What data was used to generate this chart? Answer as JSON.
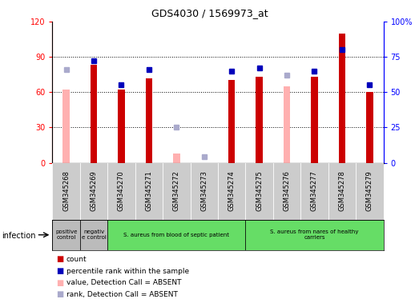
{
  "title": "GDS4030 / 1569973_at",
  "samples": [
    "GSM345268",
    "GSM345269",
    "GSM345270",
    "GSM345271",
    "GSM345272",
    "GSM345273",
    "GSM345274",
    "GSM345275",
    "GSM345276",
    "GSM345277",
    "GSM345278",
    "GSM345279"
  ],
  "count_values": [
    null,
    83,
    62,
    72,
    null,
    null,
    70,
    73,
    null,
    73,
    110,
    60
  ],
  "rank_values": [
    null,
    72,
    55,
    66,
    null,
    null,
    65,
    67,
    null,
    65,
    80,
    55
  ],
  "absent_value_values": [
    62,
    null,
    null,
    null,
    8,
    null,
    null,
    null,
    65,
    null,
    null,
    null
  ],
  "absent_rank_values": [
    66,
    null,
    null,
    null,
    25,
    4,
    null,
    null,
    62,
    null,
    null,
    null
  ],
  "ylim_left": [
    0,
    120
  ],
  "ylim_right": [
    0,
    100
  ],
  "yticks_left": [
    0,
    30,
    60,
    90,
    120
  ],
  "yticks_right": [
    0,
    25,
    50,
    75,
    100
  ],
  "ytick_labels_right": [
    "0",
    "25",
    "50",
    "75",
    "100%"
  ],
  "groups": [
    {
      "label": "positive\ncontrol",
      "start": 0,
      "end": 1,
      "color": "#bbbbbb"
    },
    {
      "label": "negativ\ne control",
      "start": 1,
      "end": 2,
      "color": "#bbbbbb"
    },
    {
      "label": "S. aureus from blood of septic patient",
      "start": 2,
      "end": 7,
      "color": "#66dd66"
    },
    {
      "label": "S. aureus from nares of healthy\ncarriers",
      "start": 7,
      "end": 12,
      "color": "#66dd66"
    }
  ],
  "bar_color": "#cc0000",
  "rank_color": "#0000bb",
  "absent_val_color": "#ffb0b0",
  "absent_rank_color": "#aaaacc",
  "infection_label": "infection",
  "bar_width": 0.25,
  "marker_size": 4
}
